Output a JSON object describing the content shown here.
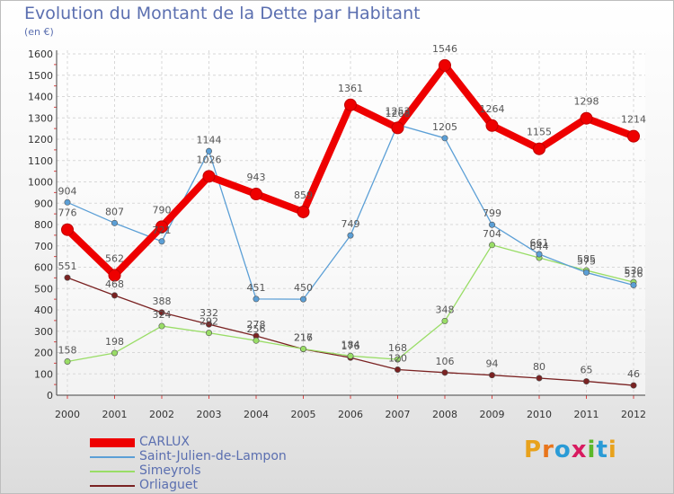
{
  "title": "Evolution du Montant de la Dette par Habitant",
  "unit": "(en €)",
  "logo": {
    "text": "Proxiti",
    "colors": [
      "#e8a21c",
      "#e8751c",
      "#2a9bd6",
      "#d81b60",
      "#5cb82a",
      "#2a9bd6",
      "#e8a21c"
    ]
  },
  "chart_data": {
    "type": "line",
    "title": "Evolution du Montant de la Dette par Habitant",
    "ylabel": "(en €)",
    "xlabel": "",
    "ylim": [
      0,
      1600
    ],
    "yticks": [
      "0",
      "100",
      "200",
      "300",
      "400",
      "500",
      "600",
      "700",
      "800",
      "900",
      "1000",
      "1100",
      "1200",
      "1300",
      "1400",
      "1500",
      "1600"
    ],
    "x": [
      "2000",
      "2001",
      "2002",
      "2003",
      "2004",
      "2005",
      "2006",
      "2007",
      "2008",
      "2009",
      "2010",
      "2011",
      "2012"
    ],
    "grid": true,
    "legend": "bottom-left",
    "series": [
      {
        "name": "CARLUX",
        "color": "#ee0000",
        "values": [
          776,
          562,
          790,
          1026,
          943,
          859,
          1361,
          1253,
          1546,
          1264,
          1155,
          1298,
          1214
        ],
        "labels": [
          "776",
          "562",
          "790",
          "1026",
          "943",
          "859",
          "1361",
          "1253",
          "1546",
          "1264",
          "1155",
          "1298",
          "1214"
        ]
      },
      {
        "name": "Saint-Julien-de-Lampon",
        "color": "#5b9fd6",
        "values": [
          904,
          807,
          721,
          1144,
          451,
          450,
          749,
          1268,
          1205,
          799,
          661,
          575,
          516
        ],
        "labels": [
          "904",
          "807",
          "721",
          "1144",
          "451",
          "450",
          "749",
          "1268",
          "1205",
          "799",
          "661",
          "575",
          "516"
        ]
      },
      {
        "name": "Simeyrols",
        "color": "#99dd66",
        "values": [
          158,
          198,
          324,
          292,
          256,
          217,
          184,
          168,
          348,
          704,
          644,
          585,
          530
        ],
        "labels": [
          "158",
          "198",
          "324",
          "292",
          "256",
          "217",
          "184",
          "168",
          "348",
          "704",
          "644",
          "585",
          "530"
        ]
      },
      {
        "name": "Orliaguet",
        "color": "#7a2222",
        "values": [
          551,
          468,
          388,
          332,
          278,
          216,
          176,
          120,
          106,
          94,
          80,
          65,
          46
        ],
        "labels": [
          "551",
          "468",
          "388",
          "332",
          "278",
          "216",
          "176",
          "120",
          "106",
          "94",
          "80",
          "65",
          "46"
        ]
      }
    ]
  }
}
